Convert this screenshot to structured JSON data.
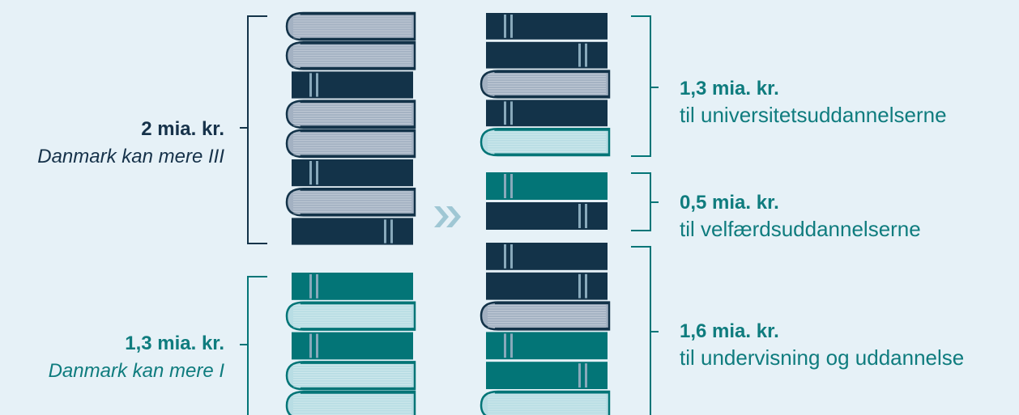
{
  "colors": {
    "background": "#e6f1f7",
    "navy": "#133349",
    "teal": "#037577",
    "gray_page": "#a3b1c2",
    "light_page": "#b8dde4",
    "bracket": "#133349",
    "bracket_teal": "#037577",
    "arrow": "#9fc7d4",
    "spine_stripe": "#88a9bb"
  },
  "icons": {
    "arrow": "double-chevron-right-icon"
  },
  "left": [
    {
      "amount": "2 mia. kr.",
      "program": "Danmark kan mere III",
      "books": [
        "gray-cover",
        "gray-cover",
        "navy-spine",
        "gray-cover",
        "gray-cover",
        "navy-spine",
        "gray-cover",
        "navy-spine"
      ]
    },
    {
      "amount": "1,3 mia. kr.",
      "program": "Danmark kan mere I",
      "books": [
        "teal-spine",
        "light-cover",
        "teal-spine",
        "light-cover",
        "light-cover"
      ]
    }
  ],
  "right": [
    {
      "amount": "1,3 mia. kr.",
      "target": "til universitetsuddannelserne",
      "books": [
        "navy-spine",
        "navy-spine",
        "gray-cover",
        "navy-spine",
        "light-cover"
      ]
    },
    {
      "amount": "0,5 mia. kr.",
      "target": "til velfærdsuddannelserne",
      "books": [
        "teal-spine",
        "navy-spine"
      ]
    },
    {
      "amount": "1,6 mia. kr.",
      "target": "til undervisning og uddannelse",
      "books": [
        "navy-spine",
        "navy-spine",
        "gray-cover",
        "teal-spine",
        "teal-spine",
        "light-cover"
      ]
    }
  ]
}
